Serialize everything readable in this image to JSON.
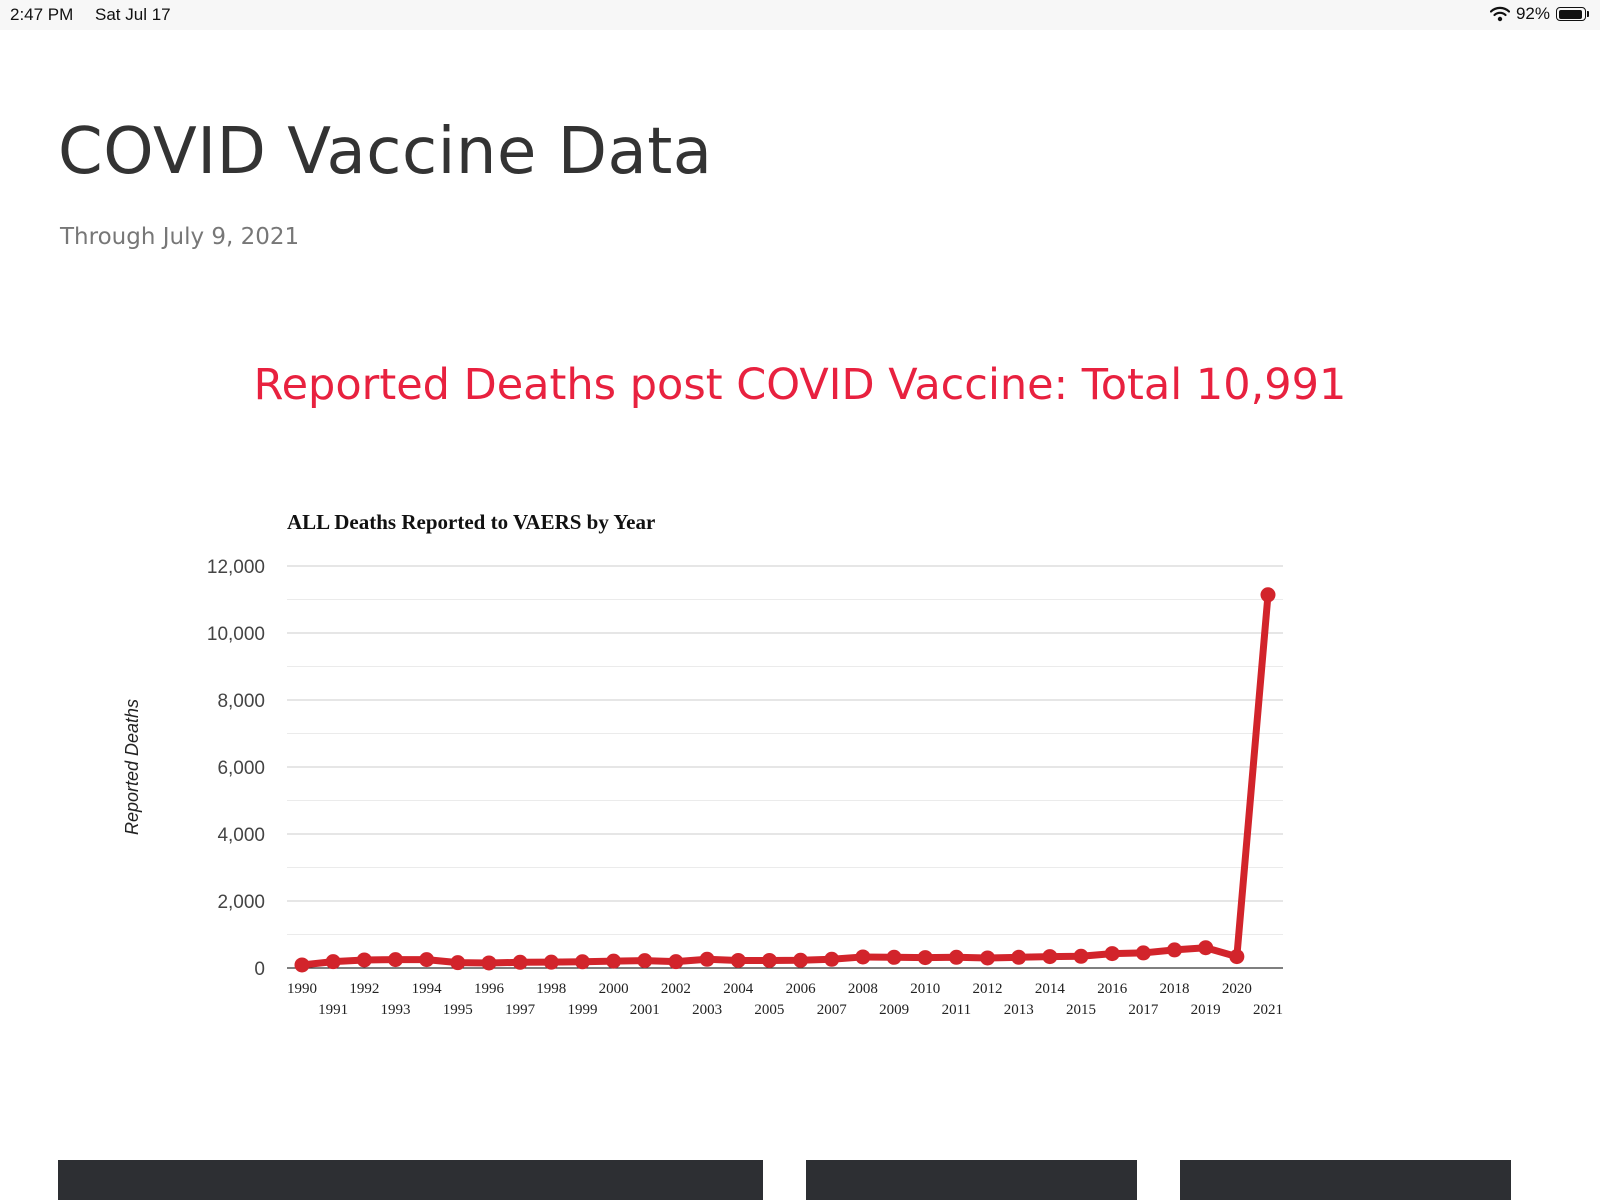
{
  "status_bar": {
    "time": "2:47 PM",
    "date": "Sat Jul 17",
    "battery": "92%",
    "battery_level": 0.92
  },
  "page": {
    "title": "COVID Vaccine Data",
    "subtitle": "Through July 9, 2021",
    "headline": "Reported Deaths post COVID Vaccine: Total 10,991"
  },
  "colors": {
    "line": "#d2242b",
    "headline": "#e8213f",
    "grid": "#cccccc",
    "card": "#2d2f33"
  },
  "chart_data": {
    "type": "line",
    "title": "ALL Deaths Reported to VAERS by Year",
    "xlabel": "",
    "ylabel": "Reported Deaths",
    "ylim": [
      0,
      12000
    ],
    "yticks": [
      0,
      2000,
      4000,
      6000,
      8000,
      10000,
      12000
    ],
    "ytick_labels": [
      "0",
      "2,000",
      "4,000",
      "6,000",
      "8,000",
      "10,000",
      "12,000"
    ],
    "grid": true,
    "legend": "none",
    "categories": [
      "1990",
      "1991",
      "1992",
      "1993",
      "1994",
      "1995",
      "1996",
      "1997",
      "1998",
      "1999",
      "2000",
      "2001",
      "2002",
      "2003",
      "2004",
      "2005",
      "2006",
      "2007",
      "2008",
      "2009",
      "2010",
      "2011",
      "2012",
      "2013",
      "2014",
      "2015",
      "2016",
      "2017",
      "2018",
      "2019",
      "2020",
      "2021"
    ],
    "series": [
      {
        "name": "",
        "values": [
          90,
          190,
          240,
          250,
          250,
          160,
          150,
          170,
          175,
          185,
          205,
          220,
          190,
          260,
          225,
          225,
          230,
          260,
          330,
          320,
          310,
          320,
          300,
          320,
          340,
          350,
          430,
          450,
          540,
          605,
          340,
          11140
        ]
      }
    ]
  }
}
